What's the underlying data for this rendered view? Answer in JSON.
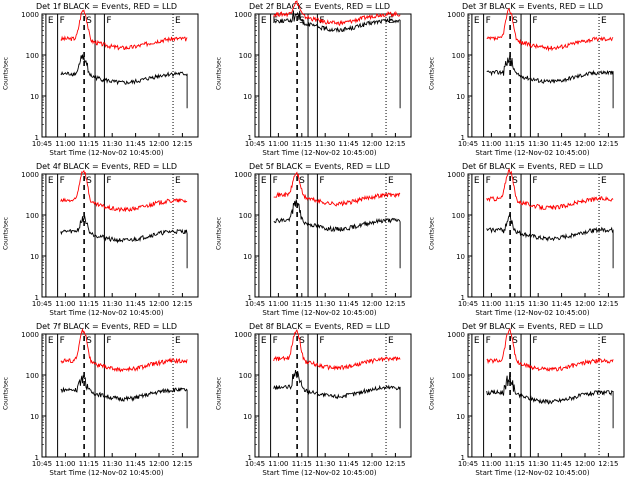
{
  "chart_data": [
    {
      "type": "line",
      "title": "Det 1f BLACK = Events, RED = LLD",
      "xlabel": "Start Time (12-Nov-02 10:45:00)",
      "ylabel": "Counts/sec",
      "xticks": [
        "10:45",
        "11:00",
        "11:15",
        "11:30",
        "11:45",
        "12:00",
        "12:15"
      ],
      "yticks": [
        "1",
        "10",
        "100",
        "1000"
      ],
      "ylim": [
        1,
        1000
      ],
      "yscale": "log",
      "markers": {
        "labels": [
          "E",
          "F",
          "S",
          "F",
          "E"
        ]
      },
      "series": [
        {
          "color": "#ff0000",
          "base": 200,
          "peak": 1200
        },
        {
          "color": "#000000",
          "base": 28,
          "peak": 80
        }
      ]
    },
    {
      "type": "line",
      "title": "Det 2f BLACK = Events, RED = LLD",
      "xlabel": "Start Time (12-Nov-02 10:45:00)",
      "ylabel": "Counts/sec",
      "xticks": [
        "10:45",
        "11:00",
        "11:15",
        "11:30",
        "11:45",
        "12:00",
        "12:15"
      ],
      "yticks": [
        "1",
        "10",
        "100",
        "1000"
      ],
      "ylim": [
        1,
        1000
      ],
      "yscale": "log",
      "markers": {
        "labels": [
          "E",
          "F",
          "S",
          "F",
          "E"
        ]
      },
      "series": [
        {
          "color": "#ff0000",
          "base": 800,
          "peak": 1800
        },
        {
          "color": "#000000",
          "base": 550,
          "peak": 1000
        }
      ]
    },
    {
      "type": "line",
      "title": "Det 3f BLACK = Events, RED = LLD",
      "xlabel": "Start Time (12-Nov-02 10:45:00)",
      "ylabel": "Counts/sec",
      "xticks": [
        "10:45",
        "11:00",
        "11:15",
        "11:30",
        "11:45",
        "12:00",
        "12:15"
      ],
      "yticks": [
        "1",
        "10",
        "100",
        "1000"
      ],
      "ylim": [
        1,
        1000
      ],
      "yscale": "log",
      "markers": {
        "labels": [
          "E",
          "F",
          "S",
          "F",
          "E"
        ]
      },
      "series": [
        {
          "color": "#ff0000",
          "base": 200,
          "peak": 1200
        },
        {
          "color": "#000000",
          "base": 30,
          "peak": 80
        }
      ]
    },
    {
      "type": "line",
      "title": "Det 4f BLACK = Events, RED = LLD",
      "xlabel": "Start Time (12-Nov-02 10:45:00)",
      "ylabel": "Counts/sec",
      "xticks": [
        "10:45",
        "11:00",
        "11:15",
        "11:30",
        "11:45",
        "12:00",
        "12:15"
      ],
      "yticks": [
        "1",
        "10",
        "100",
        "1000"
      ],
      "ylim": [
        1,
        1000
      ],
      "yscale": "log",
      "markers": {
        "labels": [
          "E",
          "F",
          "S",
          "F",
          "E"
        ]
      },
      "series": [
        {
          "color": "#ff0000",
          "base": 180,
          "peak": 1200
        },
        {
          "color": "#000000",
          "base": 32,
          "peak": 80
        }
      ]
    },
    {
      "type": "line",
      "title": "Det 5f BLACK = Events, RED = LLD",
      "xlabel": "Start Time (12-Nov-02 10:45:00)",
      "ylabel": "Counts/sec",
      "xticks": [
        "10:45",
        "11:00",
        "11:15",
        "11:30",
        "11:45",
        "12:00",
        "12:15"
      ],
      "yticks": [
        "1",
        "10",
        "100",
        "1000"
      ],
      "ylim": [
        1,
        1000
      ],
      "yscale": "log",
      "markers": {
        "labels": [
          "E",
          "F",
          "S",
          "F",
          "E"
        ]
      },
      "series": [
        {
          "color": "#ff0000",
          "base": 250,
          "peak": 1000
        },
        {
          "color": "#000000",
          "base": 60,
          "peak": 200
        }
      ]
    },
    {
      "type": "line",
      "title": "Det 6f BLACK = Events, RED = LLD",
      "xlabel": "Start Time (12-Nov-02 10:45:00)",
      "ylabel": "Counts/sec",
      "xticks": [
        "10:45",
        "11:00",
        "11:15",
        "11:30",
        "11:45",
        "12:00",
        "12:15"
      ],
      "yticks": [
        "1",
        "10",
        "100",
        "1000"
      ],
      "ylim": [
        1,
        1000
      ],
      "yscale": "log",
      "markers": {
        "labels": [
          "E",
          "F",
          "S",
          "F",
          "E"
        ]
      },
      "series": [
        {
          "color": "#ff0000",
          "base": 200,
          "peak": 1200
        },
        {
          "color": "#000000",
          "base": 35,
          "peak": 80
        }
      ]
    },
    {
      "type": "line",
      "title": "Det 7f BLACK = Events, RED = LLD",
      "xlabel": "Start Time (12-Nov-02 10:45:00)",
      "ylabel": "Counts/sec",
      "xticks": [
        "10:45",
        "11:00",
        "11:15",
        "11:30",
        "11:45",
        "12:00",
        "12:15"
      ],
      "yticks": [
        "1",
        "10",
        "100",
        "1000"
      ],
      "ylim": [
        1,
        1000
      ],
      "yscale": "log",
      "markers": {
        "labels": [
          "E",
          "F",
          "S",
          "F",
          "E"
        ]
      },
      "series": [
        {
          "color": "#ff0000",
          "base": 180,
          "peak": 1200
        },
        {
          "color": "#000000",
          "base": 35,
          "peak": 80
        }
      ]
    },
    {
      "type": "line",
      "title": "Det 8f BLACK = Events, RED = LLD",
      "xlabel": "Start Time (12-Nov-02 10:45:00)",
      "ylabel": "Counts/sec",
      "xticks": [
        "10:45",
        "11:00",
        "11:15",
        "11:30",
        "11:45",
        "12:00",
        "12:15"
      ],
      "yticks": [
        "1",
        "10",
        "100",
        "1000"
      ],
      "ylim": [
        1,
        1000
      ],
      "yscale": "log",
      "markers": {
        "labels": [
          "E",
          "F",
          "S",
          "F",
          "E"
        ]
      },
      "series": [
        {
          "color": "#ff0000",
          "base": 200,
          "peak": 1200
        },
        {
          "color": "#000000",
          "base": 40,
          "peak": 100
        }
      ]
    },
    {
      "type": "line",
      "title": "Det 9f BLACK = Events, RED = LLD",
      "xlabel": "Start Time (12-Nov-02 10:45:00)",
      "ylabel": "Counts/sec",
      "xticks": [
        "10:45",
        "11:00",
        "11:15",
        "11:30",
        "11:45",
        "12:00",
        "12:15"
      ],
      "yticks": [
        "1",
        "10",
        "100",
        "1000"
      ],
      "ylim": [
        1,
        1000
      ],
      "yscale": "log",
      "markers": {
        "labels": [
          "E",
          "F",
          "S",
          "F",
          "E"
        ]
      },
      "series": [
        {
          "color": "#ff0000",
          "base": 180,
          "peak": 1200
        },
        {
          "color": "#000000",
          "base": 30,
          "peak": 80
        }
      ]
    }
  ]
}
